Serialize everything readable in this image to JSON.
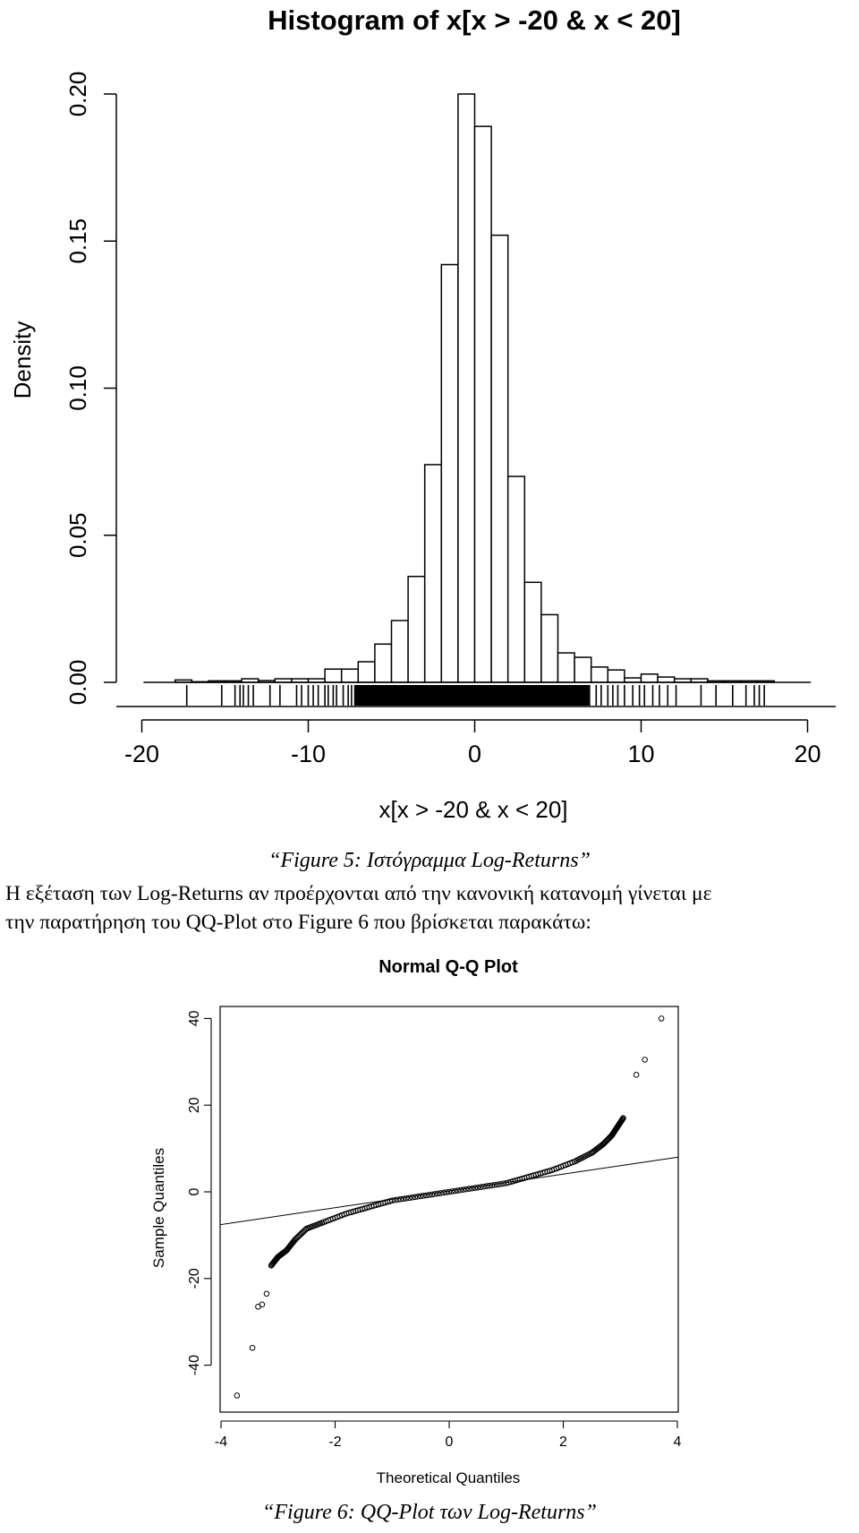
{
  "chart_data": [
    {
      "type": "bar",
      "title": "Histogram of x[x > -20 & x < 20]",
      "xlabel": "x[x > -20 & x < 20]",
      "ylabel": "Density",
      "xlim": [
        -20,
        20
      ],
      "ylim": [
        0,
        0.2
      ],
      "xticks": [
        "-20",
        "-10",
        "0",
        "10",
        "20"
      ],
      "yticks": [
        "0.00",
        "0.05",
        "0.10",
        "0.15",
        "0.20"
      ],
      "bin_width": 1,
      "bins": [
        {
          "x0": -18,
          "x1": -17,
          "density": 0.0008
        },
        {
          "x0": -17,
          "x1": -16,
          "density": 0.0002
        },
        {
          "x0": -16,
          "x1": -15,
          "density": 0.0005
        },
        {
          "x0": -15,
          "x1": -14,
          "density": 0.0005
        },
        {
          "x0": -14,
          "x1": -13,
          "density": 0.0012
        },
        {
          "x0": -13,
          "x1": -12,
          "density": 0.0006
        },
        {
          "x0": -12,
          "x1": -11,
          "density": 0.0012
        },
        {
          "x0": -11,
          "x1": -10,
          "density": 0.0012
        },
        {
          "x0": -10,
          "x1": -9,
          "density": 0.0012
        },
        {
          "x0": -9,
          "x1": -8,
          "density": 0.0045
        },
        {
          "x0": -8,
          "x1": -7,
          "density": 0.0045
        },
        {
          "x0": -7,
          "x1": -6,
          "density": 0.007
        },
        {
          "x0": -6,
          "x1": -5,
          "density": 0.013
        },
        {
          "x0": -5,
          "x1": -4,
          "density": 0.021
        },
        {
          "x0": -4,
          "x1": -3,
          "density": 0.036
        },
        {
          "x0": -3,
          "x1": -2,
          "density": 0.074
        },
        {
          "x0": -2,
          "x1": -1,
          "density": 0.142
        },
        {
          "x0": -1,
          "x1": 0,
          "density": 0.2
        },
        {
          "x0": 0,
          "x1": 1,
          "density": 0.189
        },
        {
          "x0": 1,
          "x1": 2,
          "density": 0.152
        },
        {
          "x0": 2,
          "x1": 3,
          "density": 0.07
        },
        {
          "x0": 3,
          "x1": 4,
          "density": 0.034
        },
        {
          "x0": 4,
          "x1": 5,
          "density": 0.023
        },
        {
          "x0": 5,
          "x1": 6,
          "density": 0.01
        },
        {
          "x0": 6,
          "x1": 7,
          "density": 0.0085
        },
        {
          "x0": 7,
          "x1": 8,
          "density": 0.0052
        },
        {
          "x0": 8,
          "x1": 9,
          "density": 0.0042
        },
        {
          "x0": 9,
          "x1": 10,
          "density": 0.0015
        },
        {
          "x0": 10,
          "x1": 11,
          "density": 0.0028
        },
        {
          "x0": 11,
          "x1": 12,
          "density": 0.0018
        },
        {
          "x0": 12,
          "x1": 13,
          "density": 0.0012
        },
        {
          "x0": 13,
          "x1": 14,
          "density": 0.0012
        },
        {
          "x0": 14,
          "x1": 15,
          "density": 0.0005
        },
        {
          "x0": 15,
          "x1": 16,
          "density": 0.0005
        },
        {
          "x0": 16,
          "x1": 17,
          "density": 0.0005
        },
        {
          "x0": 17,
          "x1": 18,
          "density": 0.0005
        }
      ],
      "rug": [
        -17.3,
        -15.2,
        -14.4,
        -14.1,
        -13.9,
        -13.6,
        -13.3,
        -12.3,
        -11.7,
        -10.7,
        -10.4,
        -10.0,
        -9.7,
        -9.4,
        -9.0,
        -8.8,
        -8.5,
        -8.3,
        -7.9,
        -7.6,
        -7.4,
        -7.2,
        6.9,
        7.3,
        7.6,
        8.0,
        8.3,
        8.6,
        9.0,
        9.5,
        9.9,
        10.2,
        10.7,
        11.1,
        11.6,
        12.1,
        13.6,
        14.5,
        15.5,
        16.3,
        16.8,
        17.1,
        17.4
      ],
      "rug_dense_range": [
        -7.2,
        6.9
      ]
    },
    {
      "type": "scatter",
      "title": "Normal Q-Q Plot",
      "xlabel": "Theoretical Quantiles",
      "ylabel": "Sample Quantiles",
      "xlim": [
        -4,
        4
      ],
      "ylim": [
        -50,
        42
      ],
      "xticks": [
        "-4",
        "-2",
        "0",
        "2",
        "4"
      ],
      "yticks": [
        "-40",
        "-20",
        "0",
        "20",
        "40"
      ],
      "reference_line": {
        "x": [
          -4,
          4
        ],
        "y": [
          -8,
          8
        ]
      },
      "outliers": [
        {
          "x": -3.72,
          "y": -47
        },
        {
          "x": -3.45,
          "y": -36
        },
        {
          "x": -3.35,
          "y": -26.5
        },
        {
          "x": -3.28,
          "y": -26
        },
        {
          "x": -3.2,
          "y": -23.5
        },
        {
          "x": 3.28,
          "y": 27
        },
        {
          "x": 3.43,
          "y": 30.5
        },
        {
          "x": 3.72,
          "y": 40
        }
      ],
      "quantile_curve": [
        {
          "q": -3.12,
          "v": -17
        },
        {
          "q": -3.0,
          "v": -15
        },
        {
          "q": -2.85,
          "v": -13.5
        },
        {
          "q": -2.7,
          "v": -11
        },
        {
          "q": -2.5,
          "v": -8.5
        },
        {
          "q": -2.2,
          "v": -7
        },
        {
          "q": -1.8,
          "v": -5
        },
        {
          "q": -1.4,
          "v": -3.5
        },
        {
          "q": -1.0,
          "v": -2
        },
        {
          "q": -0.5,
          "v": -1
        },
        {
          "q": 0,
          "v": 0
        },
        {
          "q": 0.5,
          "v": 1
        },
        {
          "q": 1.0,
          "v": 2
        },
        {
          "q": 1.4,
          "v": 3.5
        },
        {
          "q": 1.8,
          "v": 5
        },
        {
          "q": 2.2,
          "v": 7
        },
        {
          "q": 2.5,
          "v": 9
        },
        {
          "q": 2.7,
          "v": 11
        },
        {
          "q": 2.85,
          "v": 13
        },
        {
          "q": 2.95,
          "v": 15
        },
        {
          "q": 3.05,
          "v": 17
        }
      ]
    }
  ],
  "captions": {
    "figure5": "“Figure 5: Ιστόγραμμα Log-Returns”",
    "figure6": "“Figure 6: QQ-Plot των Log-Returns”"
  },
  "paragraph": {
    "line1": "Η εξέταση των Log-Returns αν προέρχονται από την κανονική κατανομή γίνεται με",
    "line2": "την παρατήρηση του QQ-Plot στο Figure 6 που βρίσκεται παρακάτω:"
  }
}
